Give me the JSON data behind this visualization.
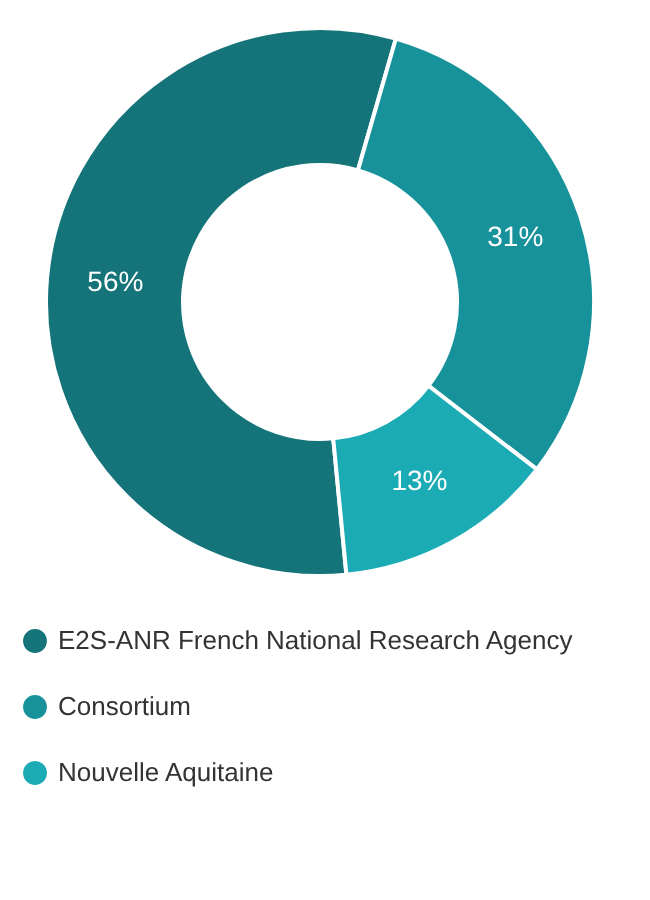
{
  "chart_data": {
    "type": "donut",
    "categories": [
      "E2S-ANR French National Research Agency",
      "Consortium",
      "Nouvelle Aquitaine"
    ],
    "values": [
      56,
      31,
      13
    ],
    "colors": [
      "#147479",
      "#17929a",
      "#1aabb5"
    ],
    "value_labels": [
      "56%",
      "31%",
      "13%"
    ],
    "legend": "bottom"
  }
}
